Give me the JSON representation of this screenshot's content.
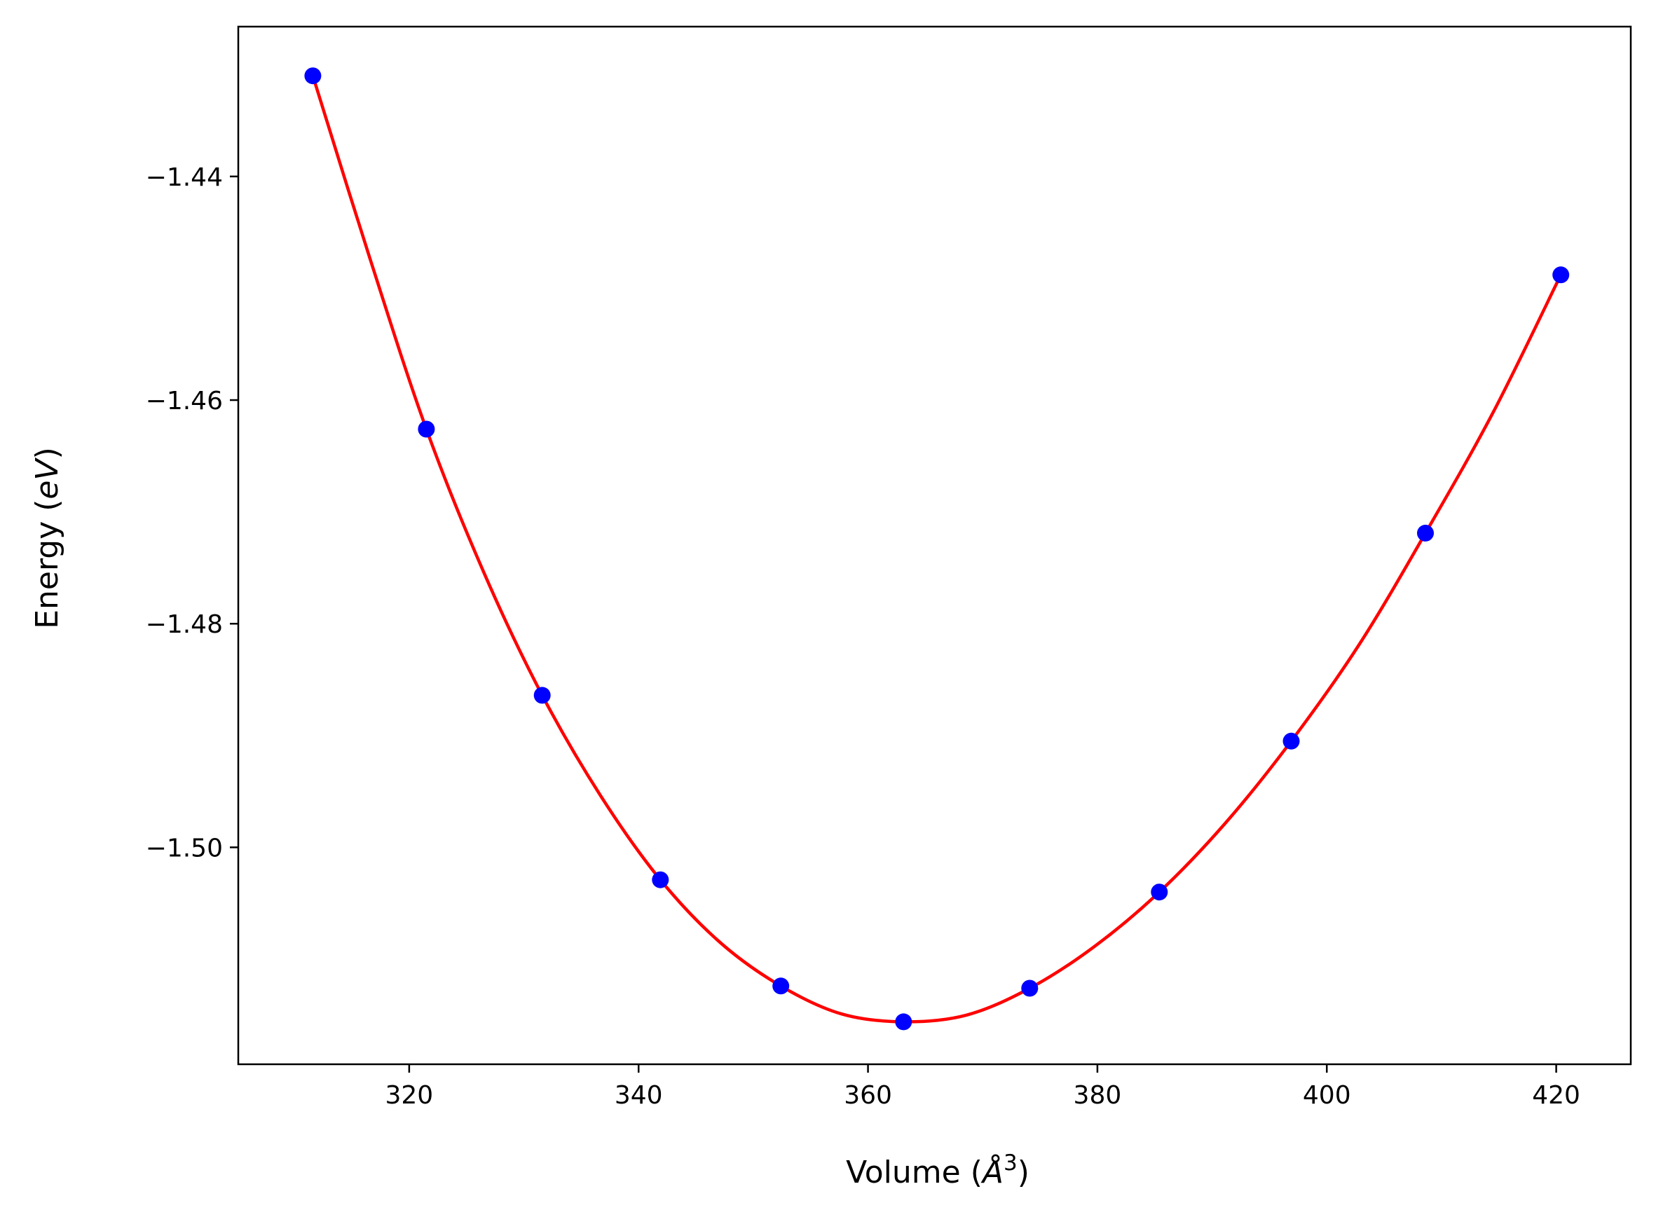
{
  "chart_data": {
    "type": "line",
    "title": "",
    "xlabel": {
      "prefix": "Volume (",
      "symbol": "Å",
      "sup": "3",
      "suffix": ")"
    },
    "ylabel": {
      "prefix": "Energy (",
      "italic": "eV",
      "suffix": ")"
    },
    "xlim": [
      305.1,
      426.5
    ],
    "ylim": [
      -1.5194,
      -1.4266
    ],
    "x_ticks": [
      320,
      340,
      360,
      380,
      400,
      420
    ],
    "x_tick_labels": [
      "320",
      "340",
      "360",
      "380",
      "400",
      "420"
    ],
    "y_ticks": [
      -1.44,
      -1.46,
      -1.48,
      -1.5
    ],
    "y_tick_labels": [
      "−1.44",
      "−1.46",
      "−1.48",
      "−1.50"
    ],
    "grid": false,
    "series": [
      {
        "kind": "scatter",
        "color": "#0000ff",
        "x": [
          311.6,
          321.5,
          331.6,
          341.9,
          352.4,
          363.1,
          374.1,
          385.4,
          396.9,
          408.6,
          420.4
        ],
        "y": [
          -1.431,
          -1.4626,
          -1.4864,
          -1.5029,
          -1.5124,
          -1.5156,
          -1.5126,
          -1.504,
          -1.4905,
          -1.4719,
          -1.4488
        ]
      },
      {
        "kind": "line",
        "color": "#ff0000",
        "x": [
          311.6,
          316.6,
          321.5,
          326.5,
          331.6,
          336.7,
          341.9,
          347.1,
          352.4,
          357.7,
          363.1,
          368.6,
          374.1,
          379.7,
          385.4,
          391.1,
          396.9,
          402.8,
          408.6,
          414.5,
          420.4
        ],
        "y": [
          -1.431,
          -1.4474,
          -1.4626,
          -1.4754,
          -1.4864,
          -1.4954,
          -1.5029,
          -1.5085,
          -1.5124,
          -1.5149,
          -1.5156,
          -1.515,
          -1.5126,
          -1.5089,
          -1.504,
          -1.4979,
          -1.4905,
          -1.4819,
          -1.4719,
          -1.4611,
          -1.4488
        ]
      }
    ]
  }
}
